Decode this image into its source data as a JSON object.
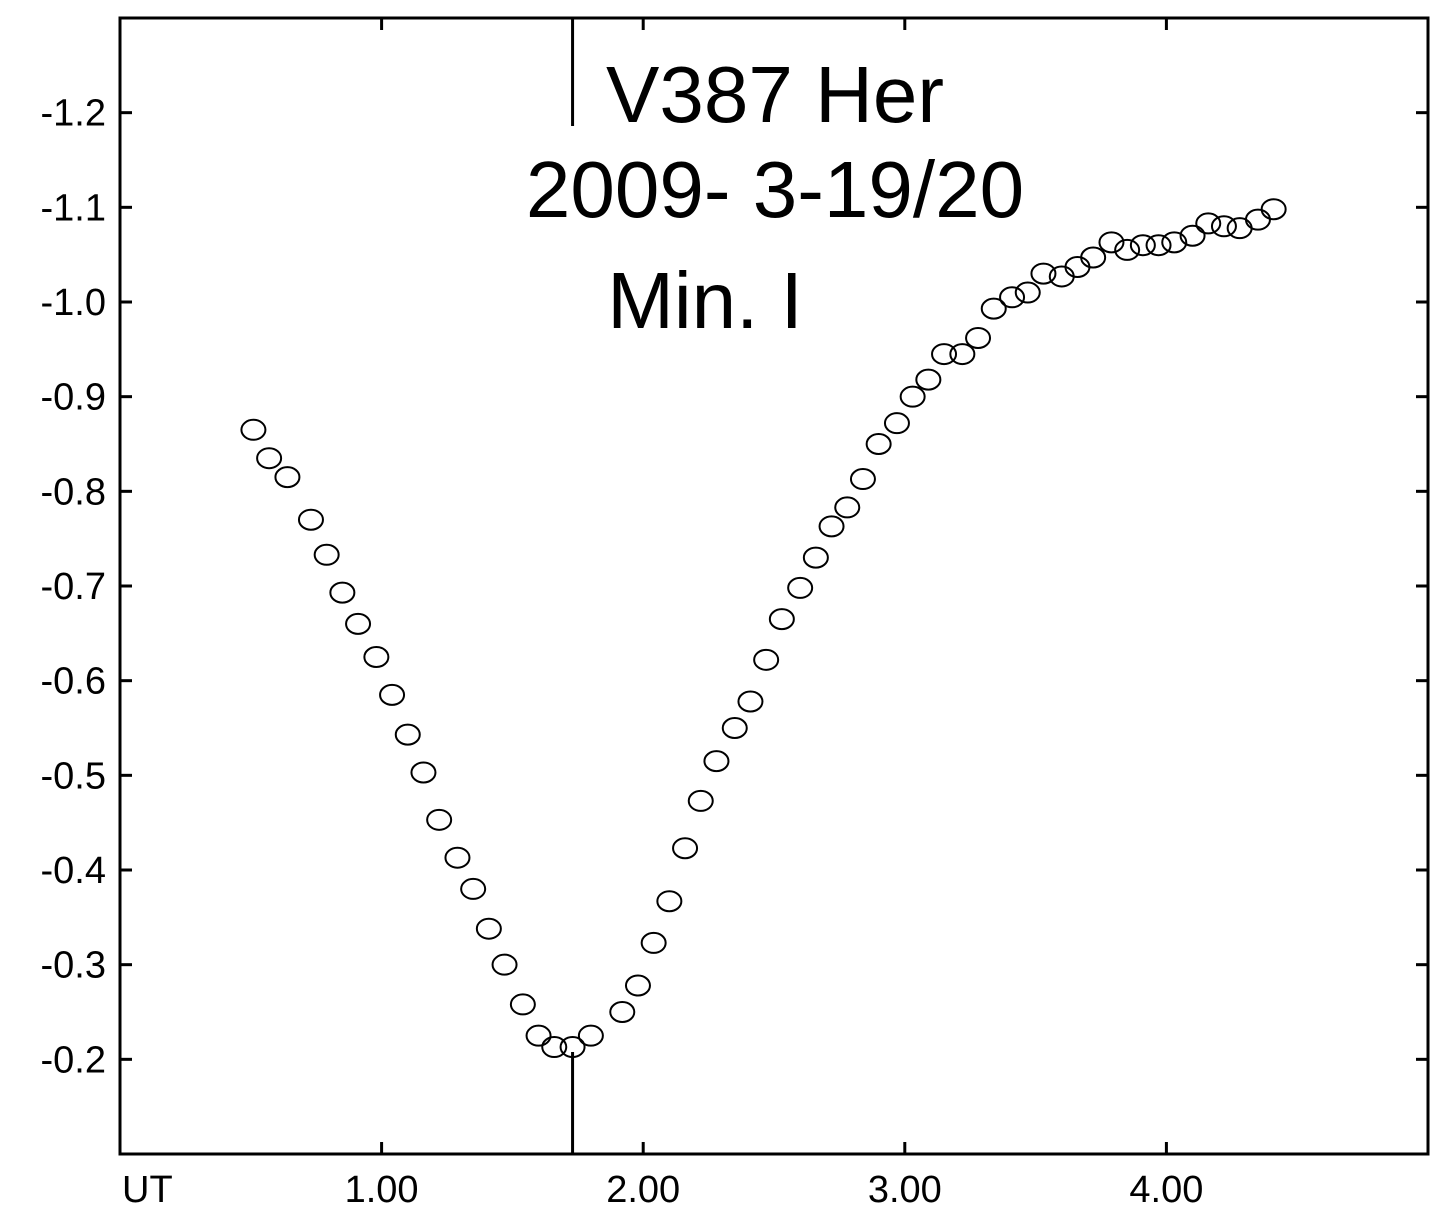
{
  "chart_data": {
    "type": "scatter",
    "title": [
      "V387 Her",
      "2009- 3-19/20",
      "Min. I"
    ],
    "xlabel": "UT",
    "ylabel": "",
    "xlim": [
      0.0,
      5.0
    ],
    "ylim": [
      -0.1,
      -1.3
    ],
    "y_inverted": true,
    "x_ticks": [
      1.0,
      2.0,
      3.0,
      4.0
    ],
    "x_tick_labels": [
      "1.00",
      "2.00",
      "3.00",
      "4.00"
    ],
    "y_ticks": [
      -0.2,
      -0.3,
      -0.4,
      -0.5,
      -0.6,
      -0.7,
      -0.8,
      -0.9,
      -1.0,
      -1.1,
      -1.2
    ],
    "y_tick_labels": [
      "-0.2",
      "-0.3",
      "-0.4",
      "-0.5",
      "-0.6",
      "-0.7",
      "-0.8",
      "-0.9",
      "-1.0",
      "-1.1",
      "-1.2"
    ],
    "minimum_marker_x": 1.73,
    "marker_style": "open-circle",
    "grid": false,
    "legend": "none",
    "series": [
      {
        "x": [
          0.51,
          0.57,
          0.64,
          0.73,
          0.79,
          0.85,
          0.91,
          0.98,
          1.04,
          1.1,
          1.16,
          1.22,
          1.29,
          1.35,
          1.41,
          1.47,
          1.54,
          1.6,
          1.66,
          1.73,
          1.8,
          1.92,
          1.98,
          2.04,
          2.1,
          2.16,
          2.22,
          2.28,
          2.35,
          2.41,
          2.47,
          2.53,
          2.6,
          2.66,
          2.72,
          2.78,
          2.84,
          2.9,
          2.97,
          3.03,
          3.09,
          3.15,
          3.22,
          3.28,
          3.34,
          3.41,
          3.47,
          3.53,
          3.6,
          3.66,
          3.72,
          3.79,
          3.85,
          3.91,
          3.97,
          4.03,
          4.1,
          4.16,
          4.22,
          4.28,
          4.35,
          4.41
        ],
        "y": [
          -0.865,
          -0.835,
          -0.815,
          -0.77,
          -0.733,
          -0.693,
          -0.66,
          -0.625,
          -0.585,
          -0.543,
          -0.503,
          -0.453,
          -0.413,
          -0.38,
          -0.338,
          -0.3,
          -0.258,
          -0.225,
          -0.213,
          -0.213,
          -0.225,
          -0.25,
          -0.278,
          -0.323,
          -0.367,
          -0.423,
          -0.473,
          -0.515,
          -0.55,
          -0.578,
          -0.622,
          -0.665,
          -0.698,
          -0.73,
          -0.763,
          -0.783,
          -0.813,
          -0.85,
          -0.872,
          -0.9,
          -0.918,
          -0.945,
          -0.945,
          -0.962,
          -0.993,
          -1.005,
          -1.01,
          -1.03,
          -1.027,
          -1.037,
          -1.047,
          -1.063,
          -1.055,
          -1.06,
          -1.06,
          -1.063,
          -1.07,
          -1.083,
          -1.08,
          -1.078,
          -1.087,
          -1.098
        ]
      }
    ]
  }
}
